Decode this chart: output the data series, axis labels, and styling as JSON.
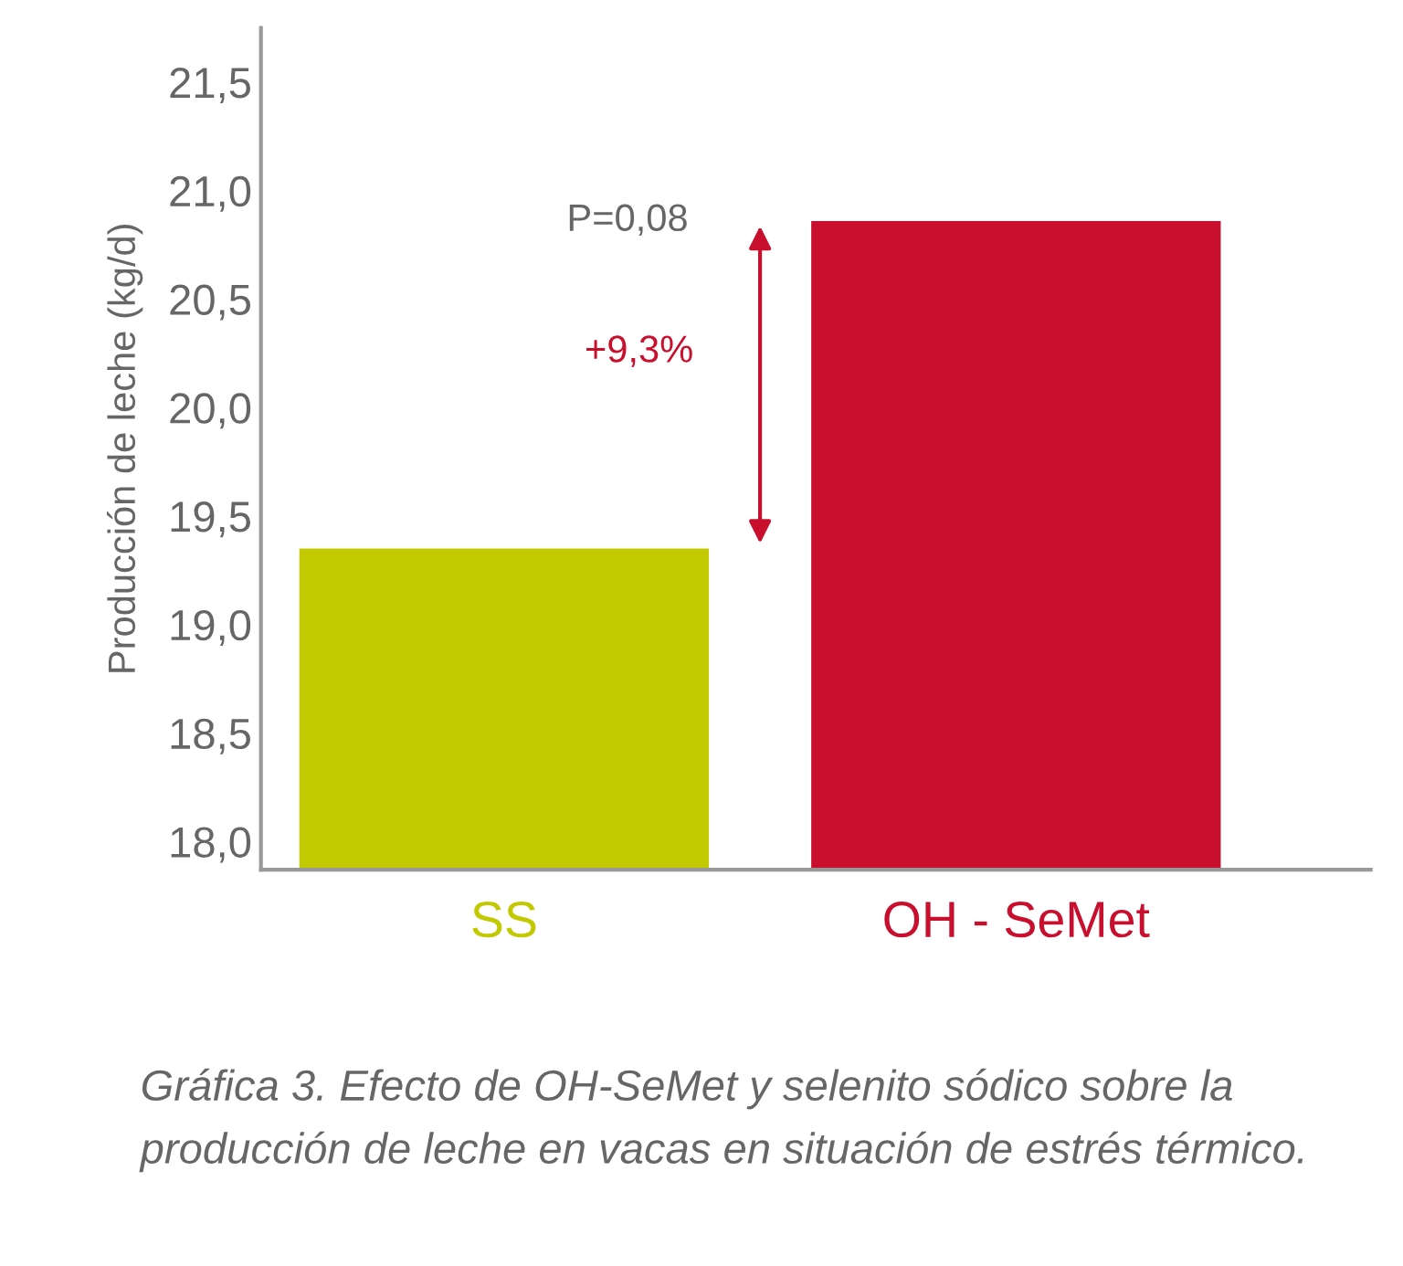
{
  "chart_data": {
    "type": "bar",
    "ylabel": "Producción de leche (kg/d)",
    "categories": [
      "SS",
      "OH - SeMet"
    ],
    "values": [
      19.35,
      20.86
    ],
    "colors": [
      "#c3c900",
      "#c8102e"
    ],
    "ylim": [
      17.87,
      21.75
    ],
    "yticks": [
      {
        "value": 18.0,
        "label": "18,0"
      },
      {
        "value": 18.5,
        "label": "18,5"
      },
      {
        "value": 19.0,
        "label": "19,0"
      },
      {
        "value": 19.5,
        "label": "19,5"
      },
      {
        "value": 20.0,
        "label": "20,0"
      },
      {
        "value": 20.5,
        "label": "20,5"
      },
      {
        "value": 21.0,
        "label": "21,0"
      },
      {
        "value": 21.5,
        "label": "21,5"
      }
    ],
    "grid": false,
    "legend": false,
    "annotations": [
      "P=0,08",
      "+9,3%",
      "Gráfica 3. Efecto de OH-SeMet y selenito sódico sobre la producción de leche en vacas en situación de estrés térmico."
    ]
  }
}
